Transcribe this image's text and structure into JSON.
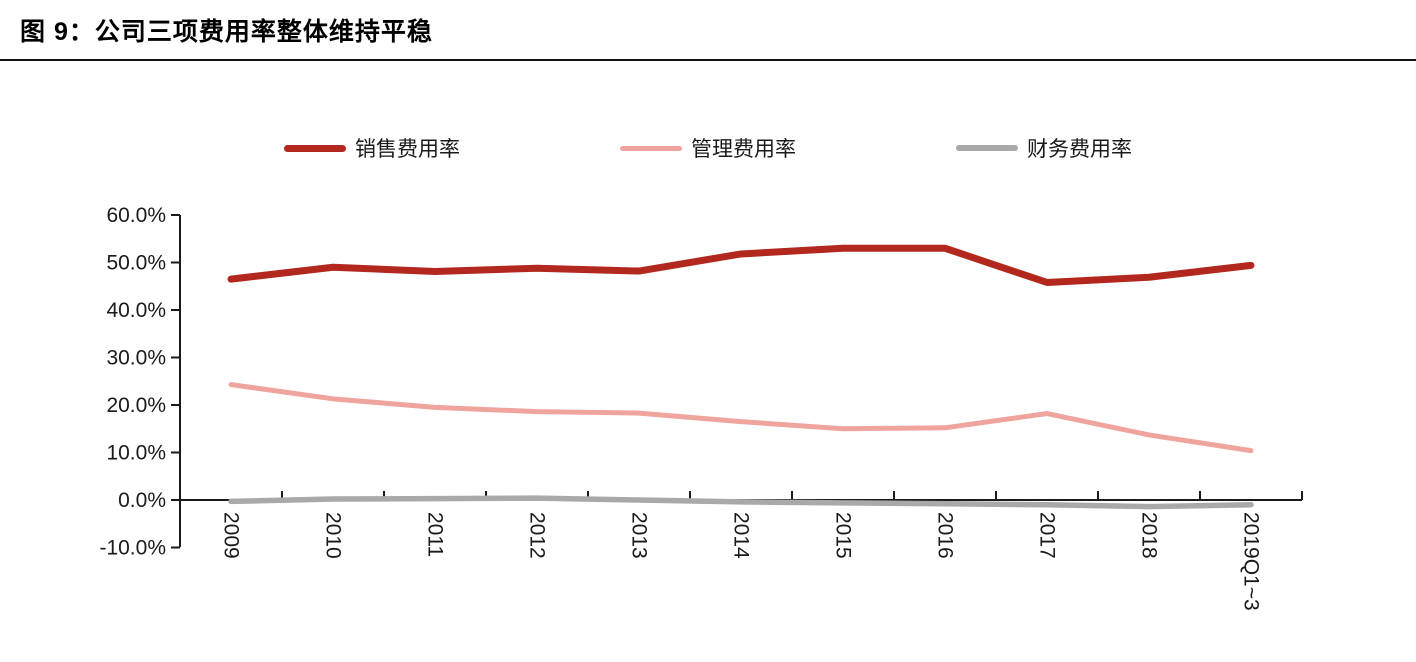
{
  "figure": {
    "title": "图 9：公司三项费用率整体维持平稳"
  },
  "chart_data": {
    "type": "line",
    "title": "公司三项费用率整体维持平稳",
    "categories": [
      "2009",
      "2010",
      "2011",
      "2012",
      "2013",
      "2014",
      "2015",
      "2016",
      "2017",
      "2018",
      "2019Q1~3"
    ],
    "series": [
      {
        "name": "销售费用率",
        "color": "#b2281e",
        "values": [
          46.5,
          49.0,
          48.1,
          48.8,
          48.2,
          51.8,
          53.0,
          53.0,
          45.8,
          46.9,
          49.4
        ]
      },
      {
        "name": "管理费用率",
        "color": "#efa49d",
        "values": [
          24.3,
          21.3,
          19.5,
          18.6,
          18.3,
          16.5,
          15.0,
          15.2,
          18.2,
          13.7,
          10.4
        ]
      },
      {
        "name": "财务费用率",
        "color": "#a9a9a9",
        "values": [
          -0.3,
          0.2,
          0.3,
          0.4,
          0.0,
          -0.4,
          -0.6,
          -0.8,
          -1.0,
          -1.4,
          -1.0
        ]
      }
    ],
    "xlabel": "",
    "ylabel": "",
    "y_ticks": [
      "60.0%",
      "50.0%",
      "40.0%",
      "30.0%",
      "20.0%",
      "10.0%",
      "0.0%",
      "-10.0%"
    ],
    "ylim": [
      -10,
      60
    ],
    "y_tick_step": 10,
    "grid": false,
    "legend_position": "top",
    "axis_color": "#1a1a1a"
  }
}
